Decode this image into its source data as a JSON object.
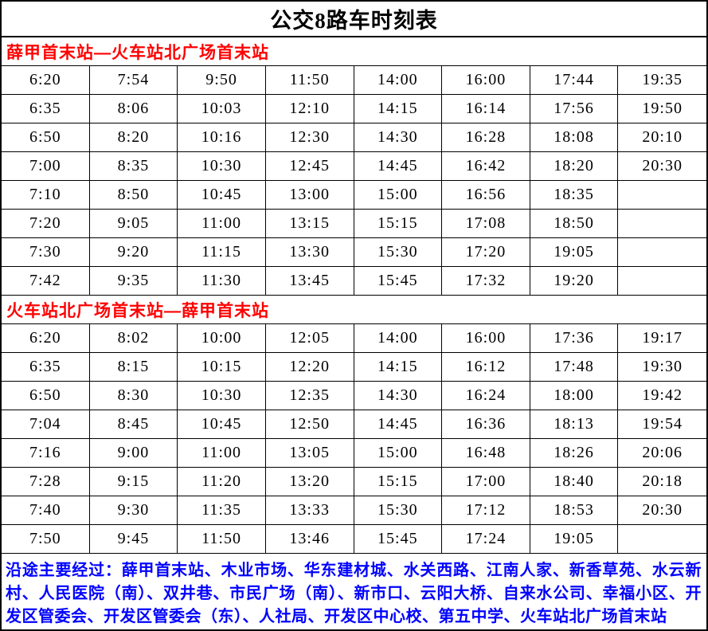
{
  "title": "公交8路车时刻表",
  "sections": [
    {
      "header": "薛甲首末站—火车站北广场首末站",
      "rows": [
        [
          "6:20",
          "7:54",
          "9:50",
          "11:50",
          "14:00",
          "16:00",
          "17:44",
          "19:35"
        ],
        [
          "6:35",
          "8:06",
          "10:03",
          "12:10",
          "14:15",
          "16:14",
          "17:56",
          "19:50"
        ],
        [
          "6:50",
          "8:20",
          "10:16",
          "12:30",
          "14:30",
          "16:28",
          "18:08",
          "20:10"
        ],
        [
          "7:00",
          "8:35",
          "10:30",
          "12:45",
          "14:45",
          "16:42",
          "18:20",
          "20:30"
        ],
        [
          "7:10",
          "8:50",
          "10:45",
          "13:00",
          "15:00",
          "16:56",
          "18:35",
          ""
        ],
        [
          "7:20",
          "9:05",
          "11:00",
          "13:15",
          "15:15",
          "17:08",
          "18:50",
          ""
        ],
        [
          "7:30",
          "9:20",
          "11:15",
          "13:30",
          "15:30",
          "17:20",
          "19:05",
          ""
        ],
        [
          "7:42",
          "9:35",
          "11:30",
          "13:45",
          "15:45",
          "17:32",
          "19:20",
          ""
        ]
      ]
    },
    {
      "header": "火车站北广场首末站—薛甲首末站",
      "rows": [
        [
          "6:20",
          "8:02",
          "10:00",
          "12:05",
          "14:00",
          "16:00",
          "17:36",
          "19:17"
        ],
        [
          "6:35",
          "8:15",
          "10:15",
          "12:20",
          "14:15",
          "16:12",
          "17:48",
          "19:30"
        ],
        [
          "6:50",
          "8:30",
          "10:30",
          "12:35",
          "14:30",
          "16:24",
          "18:00",
          "19:42"
        ],
        [
          "7:04",
          "8:45",
          "10:45",
          "12:50",
          "14:45",
          "16:36",
          "18:13",
          "19:54"
        ],
        [
          "7:16",
          "9:00",
          "11:00",
          "13:05",
          "15:00",
          "16:48",
          "18:26",
          "20:06"
        ],
        [
          "7:28",
          "9:15",
          "11:20",
          "13:20",
          "15:15",
          "17:00",
          "18:40",
          "20:18"
        ],
        [
          "7:40",
          "9:30",
          "11:35",
          "13:33",
          "15:30",
          "17:12",
          "18:53",
          "20:30"
        ],
        [
          "7:50",
          "9:45",
          "11:50",
          "13:46",
          "15:45",
          "17:24",
          "19:05",
          ""
        ]
      ]
    }
  ],
  "footer": {
    "note": "沿途主要经过：薛甲首末站、木业市场、华东建材城、水关西路、江南人家、新香草苑、水云新村、人民医院（南）、双井巷、市民广场（南）、新市口、云阳大桥、自来水公司、幸福小区、开发区管委会、开发区管委会（东）、人社局、开发区中心校、第五中学、火车站北广场首末站"
  },
  "colors": {
    "section_header": "#ff0000",
    "note_text": "#0000ff",
    "border": "#000000",
    "background": "#ffffff"
  }
}
